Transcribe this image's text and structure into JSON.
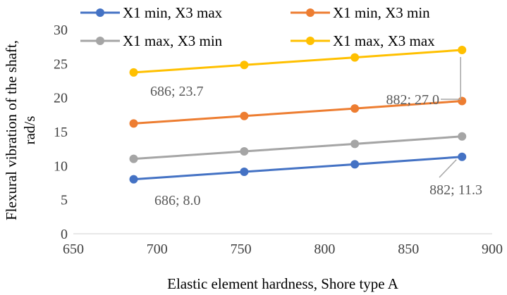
{
  "chart_data": {
    "type": "line",
    "xlabel": "Elastic element hardness, Shore type A",
    "ylabel_line1": "Flexural vibration of the shaft,",
    "ylabel_line2": "rad/s",
    "xlim": [
      650,
      900
    ],
    "ylim": [
      0,
      30
    ],
    "x_ticks": [
      "650",
      "700",
      "750",
      "800",
      "850",
      "900"
    ],
    "y_ticks": [
      "0",
      "5",
      "10",
      "15",
      "20",
      "25",
      "30"
    ],
    "grid": false,
    "legend_position": "top",
    "x": [
      686,
      752,
      818,
      882
    ],
    "series": [
      {
        "name": "X1 min, X3 max",
        "color": "#4472C4",
        "values": [
          8.0,
          9.1,
          10.2,
          11.3
        ]
      },
      {
        "name": "X1 min, X3 min",
        "color": "#ED7D31",
        "values": [
          16.2,
          17.3,
          18.4,
          19.5
        ]
      },
      {
        "name": "X1 max, X3 min",
        "color": "#A5A5A5",
        "values": [
          11.0,
          12.1,
          13.2,
          14.3
        ]
      },
      {
        "name": "X1 max, X3 max",
        "color": "#FFC000",
        "values": [
          23.7,
          24.8,
          25.9,
          27.0
        ]
      }
    ],
    "annotations": [
      {
        "text": "686; 23.7",
        "series": 3,
        "point": 0
      },
      {
        "text": "882; 27.0",
        "series": 3,
        "point": 3
      },
      {
        "text": "686; 8.0",
        "series": 0,
        "point": 0
      },
      {
        "text": "882; 11.3",
        "series": 0,
        "point": 3
      }
    ]
  }
}
